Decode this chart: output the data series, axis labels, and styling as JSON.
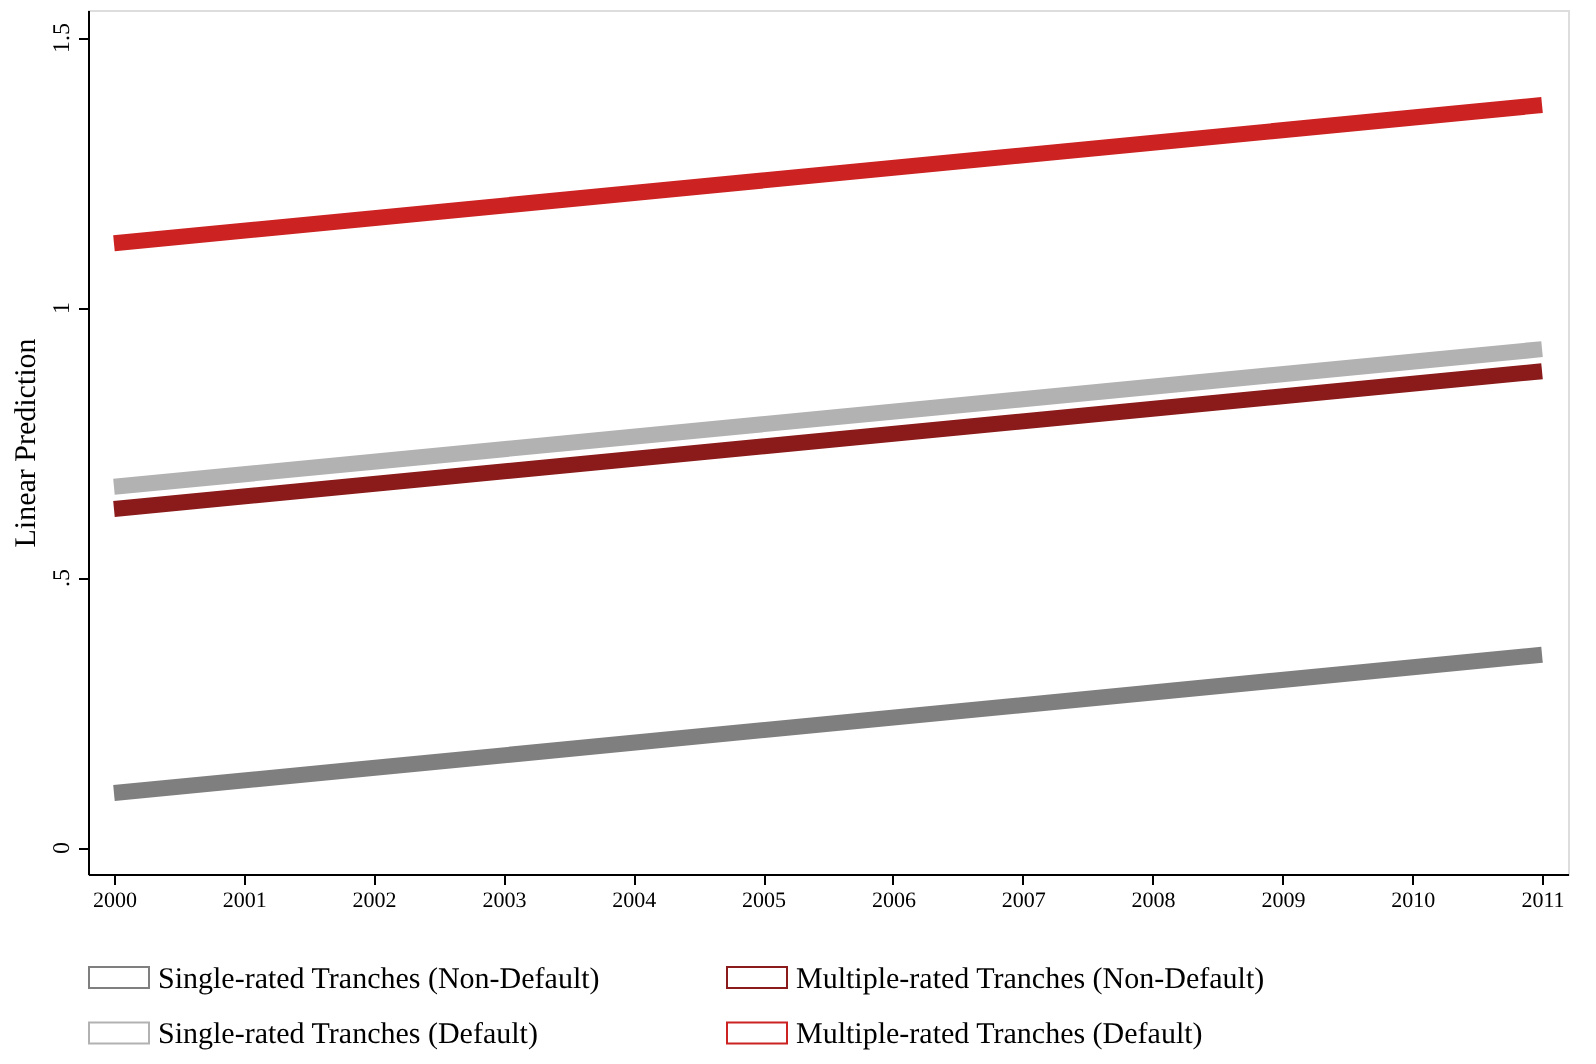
{
  "chart_data": {
    "type": "line",
    "ylabel": "Linear Prediction",
    "x": [
      2000,
      2011
    ],
    "series": [
      {
        "name": "Single-rated Tranches (Non-Default)",
        "color": "#7f7f7f",
        "values": [
          0.1,
          0.356
        ]
      },
      {
        "name": "Multiple-rated Tranches (Non-Default)",
        "color": "#8b1a1a",
        "values": [
          0.626,
          0.881
        ]
      },
      {
        "name": "Single-rated Tranches (Default)",
        "color": "#b2b2b2",
        "values": [
          0.667,
          0.922
        ]
      },
      {
        "name": "Multiple-rated Tranches (Default)",
        "color": "#cc2222",
        "values": [
          1.118,
          1.374
        ]
      }
    ],
    "xlim": [
      1999.8,
      2011.2
    ],
    "xticks": [
      2000,
      2001,
      2002,
      2003,
      2004,
      2005,
      2006,
      2007,
      2008,
      2009,
      2010,
      2011
    ],
    "ylim": [
      -0.05,
      1.55
    ],
    "yticks": [
      0,
      {
        "value": 0.5,
        "label": ".5"
      },
      1,
      1.5
    ],
    "grid": false,
    "legend": "bottom",
    "marker": "none",
    "line_style": "solid"
  }
}
